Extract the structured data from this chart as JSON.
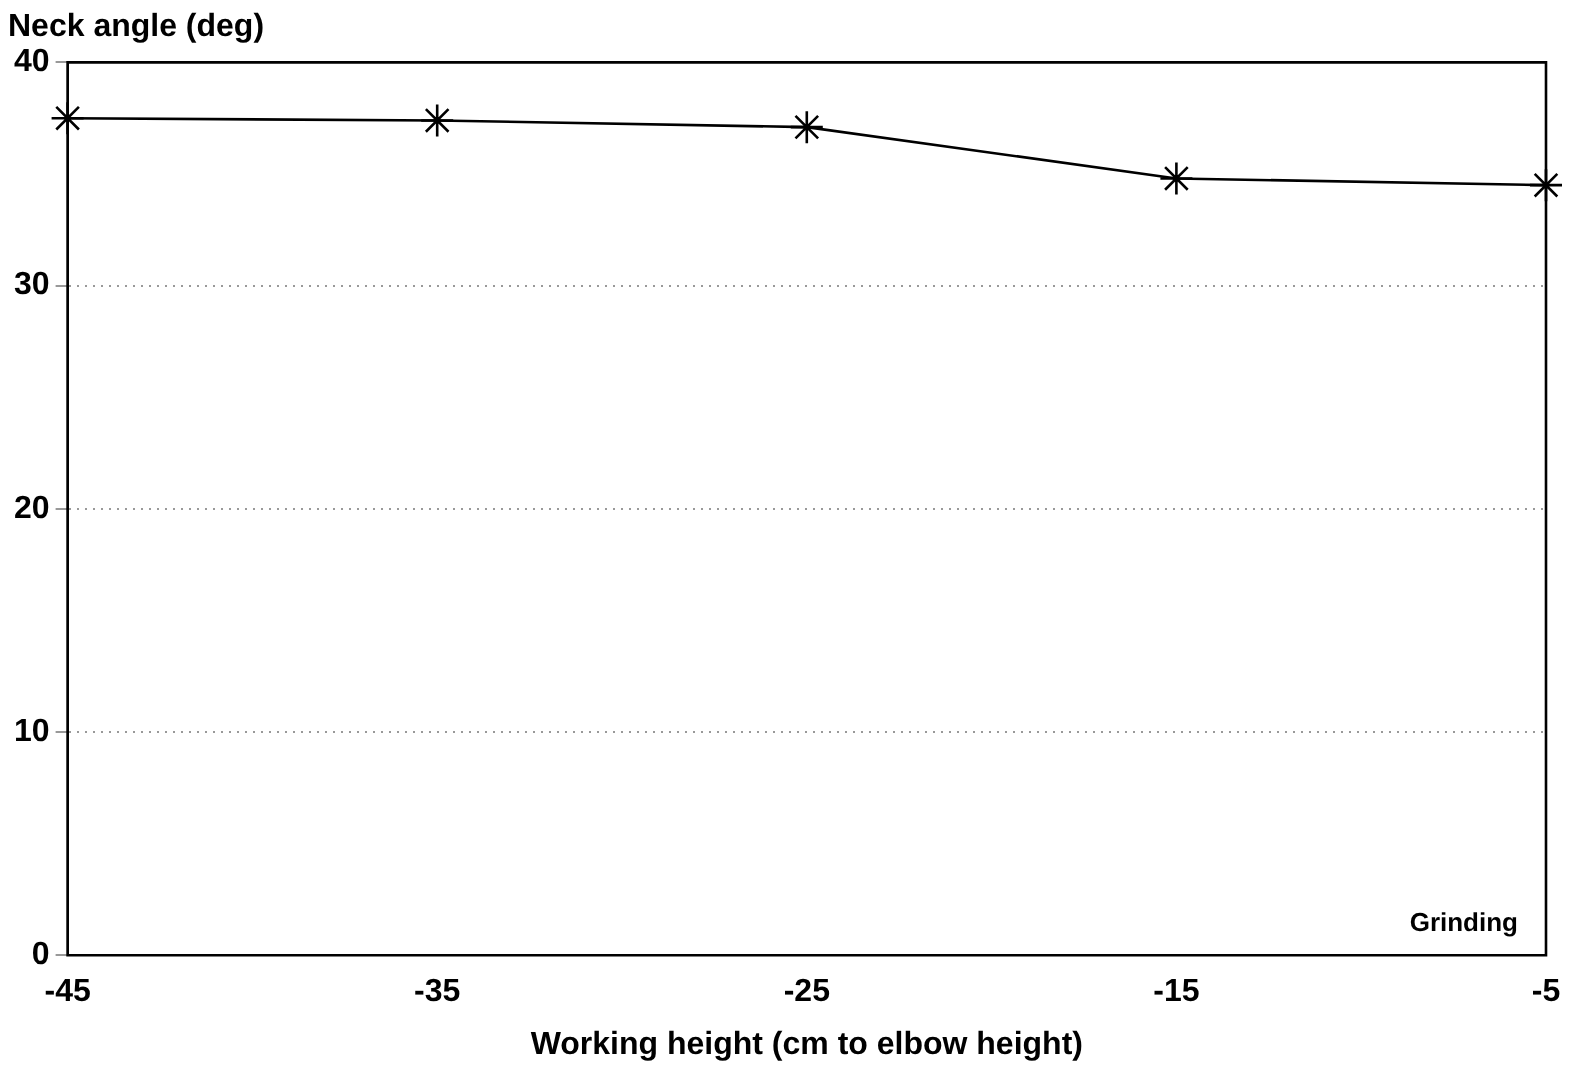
{
  "chart_data": {
    "type": "line",
    "ylabel": "Neck angle (deg)",
    "xlabel": "Working height (cm to elbow height)",
    "x": [
      -45,
      -35,
      -25,
      -15,
      -5
    ],
    "series": [
      {
        "color": "#000000",
        "values": [
          37.5,
          37.4,
          37.1,
          34.8,
          34.5
        ]
      }
    ],
    "xlim": [
      -45,
      -5
    ],
    "xticks": [
      -45,
      -35,
      -25,
      -15,
      -5
    ],
    "ylim": [
      0,
      40
    ],
    "yticks": [
      0,
      10,
      20,
      30,
      40
    ],
    "grid": "y",
    "marker": "cross",
    "line_style": "solid",
    "legend": false,
    "annotations": [
      "Grinding"
    ]
  }
}
